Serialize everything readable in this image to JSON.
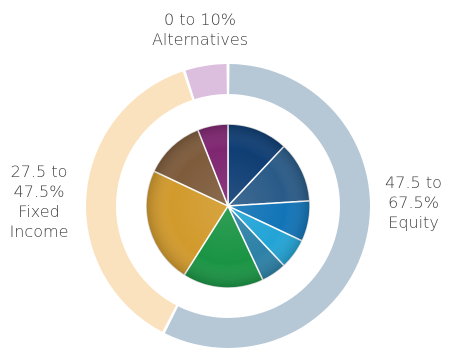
{
  "chart_data": [
    {
      "type": "pie",
      "subtype": "donut",
      "title": "",
      "segments": [
        {
          "label": "Equity",
          "range_text_line1": "47.5 to",
          "range_text_line2": "67.5%",
          "name": "Equity",
          "value": 57.5,
          "color": "#b6c7d6"
        },
        {
          "label": "Fixed Income",
          "range_text_line1": "27.5 to",
          "range_text_line2": "47.5%",
          "name_line1": "Fixed",
          "name_line2": "Income",
          "value": 37.5,
          "color": "#fbe2bf"
        },
        {
          "label": "Alternatives",
          "range_text_line1": "0 to 10%",
          "name": "Alternatives",
          "value": 5,
          "color": "#dcbedf"
        }
      ]
    },
    {
      "type": "pie",
      "title": "",
      "slices": [
        {
          "value": 12,
          "color": "#0f3e74"
        },
        {
          "value": 12,
          "color": "#2a5b88"
        },
        {
          "value": 8,
          "color": "#1274b7"
        },
        {
          "value": 6,
          "color": "#23a4d6"
        },
        {
          "value": 5,
          "color": "#2d81a7"
        },
        {
          "value": 16,
          "color": "#1a9444"
        },
        {
          "value": 23,
          "color": "#d29a2c"
        },
        {
          "value": 12,
          "color": "#7e5b3b"
        },
        {
          "value": 6,
          "color": "#7f2671"
        }
      ]
    }
  ]
}
